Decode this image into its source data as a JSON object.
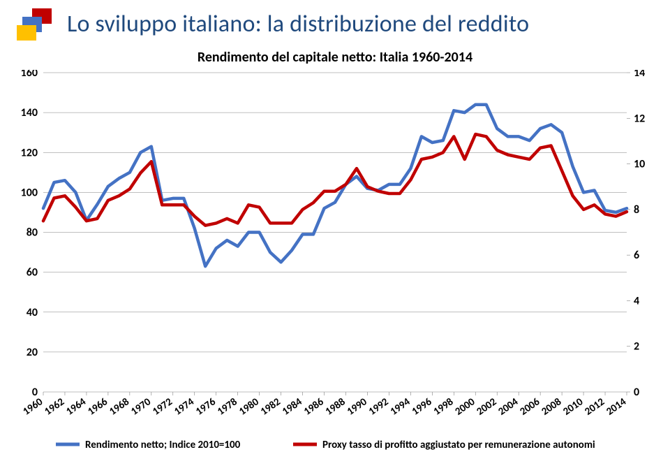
{
  "header": {
    "title": "Lo sviluppo italiano: la distribuzione del reddito",
    "flag_colors": [
      "#c00000",
      "#4472c4",
      "#ffc000"
    ]
  },
  "chart": {
    "type": "line",
    "title": "Rendimento del capitale netto: Italia 1960-2014",
    "title_fontsize": 20,
    "title_fontweight": "bold",
    "background_color": "#ffffff",
    "plot_area_fill": "#ffffff",
    "grid_color": "#808080",
    "grid_line_width": 0.6,
    "font_family": "Calibri",
    "x_axis": {
      "years": [
        1960,
        1961,
        1962,
        1963,
        1964,
        1965,
        1966,
        1967,
        1968,
        1969,
        1970,
        1971,
        1972,
        1973,
        1974,
        1975,
        1976,
        1977,
        1978,
        1979,
        1980,
        1981,
        1982,
        1983,
        1984,
        1985,
        1986,
        1987,
        1988,
        1989,
        1990,
        1991,
        1992,
        1993,
        1994,
        1995,
        1996,
        1997,
        1998,
        1999,
        2000,
        2001,
        2002,
        2003,
        2004,
        2005,
        2006,
        2007,
        2008,
        2009,
        2010,
        2011,
        2012,
        2013,
        2014
      ],
      "tick_labels": [
        "1960",
        "1962",
        "1964",
        "1966",
        "1968",
        "1970",
        "1972",
        "1974",
        "1976",
        "1978",
        "1980",
        "1982",
        "1984",
        "1986",
        "1988",
        "1990",
        "1992",
        "1994",
        "1996",
        "1998",
        "2000",
        "2002",
        "2004",
        "2006",
        "2008",
        "2010",
        "2012",
        "2014"
      ],
      "tick_step": 2,
      "label_fontsize": 15,
      "label_rotation": -35,
      "label_fontweight": "bold"
    },
    "y_axis_left": {
      "min": 0,
      "max": 160,
      "step": 20,
      "label_fontsize": 16,
      "label_fontweight": "bold"
    },
    "y_axis_right": {
      "min": 0,
      "max": 14,
      "step": 2,
      "label_fontsize": 16,
      "label_fontweight": "bold"
    },
    "series": [
      {
        "name": "index",
        "axis": "left",
        "label": "Rendimento netto; Indice 2010=100",
        "color": "#4472c4",
        "line_width": 4.5,
        "data": [
          92,
          105,
          106,
          100,
          86,
          94,
          103,
          107,
          110,
          120,
          123,
          96,
          97,
          97,
          82,
          63,
          72,
          76,
          73,
          80,
          80,
          70,
          65,
          71,
          79,
          79,
          92,
          95,
          104,
          108,
          102,
          101,
          104,
          104,
          112,
          128,
          125,
          126,
          141,
          140,
          144,
          144,
          132,
          128,
          128,
          126,
          132,
          134,
          130,
          113,
          100,
          101,
          91,
          90,
          92
        ]
      },
      {
        "name": "proxy",
        "axis": "right",
        "label": "Proxy tasso di profitto aggiustato per remunerazione autonomi",
        "color": "#c00000",
        "line_width": 4.5,
        "data": [
          7.5,
          8.5,
          8.6,
          8.1,
          7.5,
          7.6,
          8.4,
          8.6,
          8.9,
          9.6,
          10.1,
          8.2,
          8.2,
          8.2,
          7.7,
          7.3,
          7.4,
          7.6,
          7.4,
          8.2,
          8.1,
          7.4,
          7.4,
          7.4,
          8.0,
          8.3,
          8.8,
          8.8,
          9.1,
          9.8,
          9.0,
          8.8,
          8.7,
          8.7,
          9.3,
          10.2,
          10.3,
          10.5,
          11.2,
          10.2,
          11.3,
          11.2,
          10.6,
          10.4,
          10.3,
          10.2,
          10.7,
          10.8,
          9.7,
          8.6,
          8.0,
          8.2,
          7.8,
          7.7,
          7.9
        ]
      }
    ],
    "legend": {
      "position": "bottom",
      "fontsize": 15,
      "fontweight": "bold",
      "swatch_line_width": 5
    }
  }
}
